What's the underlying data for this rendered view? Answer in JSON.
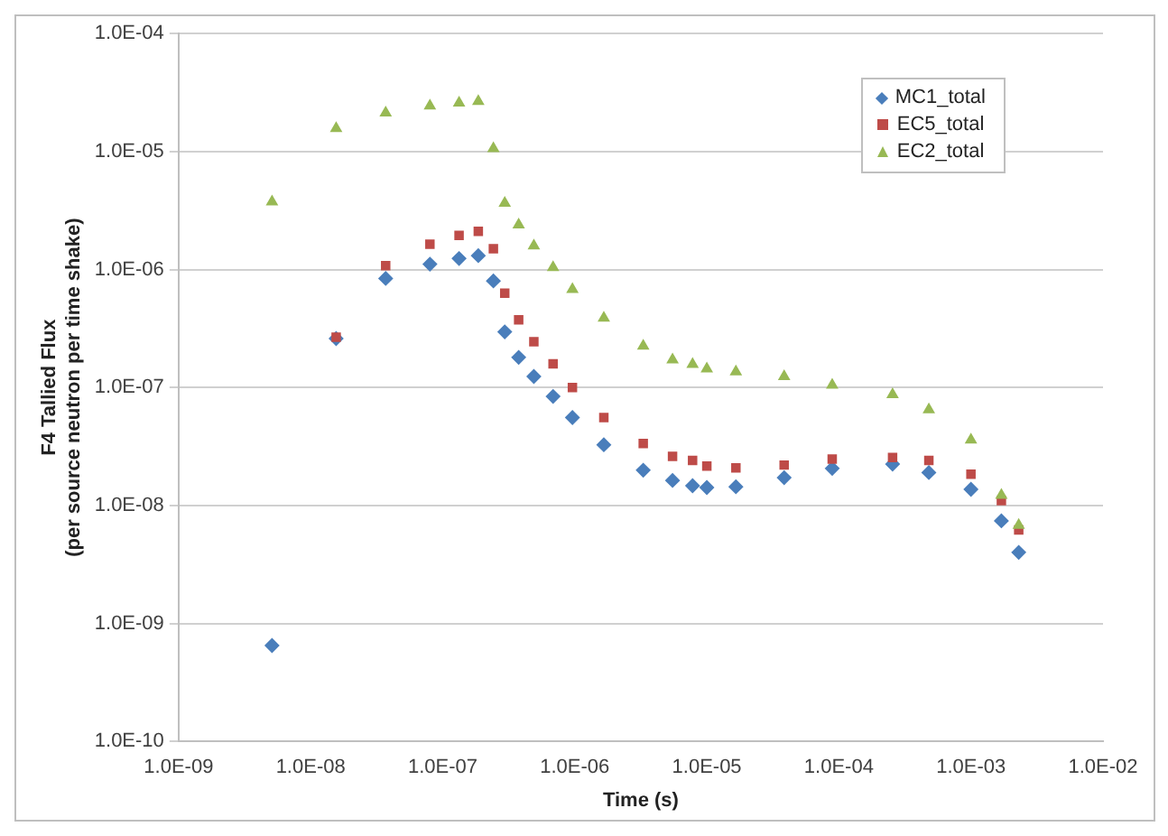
{
  "chart_data": {
    "type": "scatter",
    "xlabel": "Time (s)",
    "ylabel": "F4 Tallied Flux\n(per source neutron per time shake)",
    "log": "xy",
    "grid": "y",
    "legend": "top right",
    "xlim": [
      1e-09,
      0.01
    ],
    "ylim": [
      1e-10,
      0.0001
    ],
    "xticks": [
      {
        "value": 1e-09,
        "label": "1.0E-09"
      },
      {
        "value": 1e-08,
        "label": "1.0E-08"
      },
      {
        "value": 1e-07,
        "label": "1.0E-07"
      },
      {
        "value": 1e-06,
        "label": "1.0E-06"
      },
      {
        "value": 1e-05,
        "label": "1.0E-05"
      },
      {
        "value": 0.0001,
        "label": "1.0E-04"
      },
      {
        "value": 0.001,
        "label": "1.0E-03"
      },
      {
        "value": 0.01,
        "label": "1.0E-02"
      }
    ],
    "yticks": [
      {
        "value": 1e-10,
        "label": "1.0E-10"
      },
      {
        "value": 1e-09,
        "label": "1.0E-09"
      },
      {
        "value": 1e-08,
        "label": "1.0E-08"
      },
      {
        "value": 1e-07,
        "label": "1.0E-07"
      },
      {
        "value": 1e-06,
        "label": "1.0E-06"
      },
      {
        "value": 1e-05,
        "label": "1.0E-05"
      },
      {
        "value": 0.0001,
        "label": "1.0E-04"
      }
    ],
    "x": [
      5.1e-09,
      1.56e-08,
      3.7e-08,
      8e-08,
      1.33e-07,
      1.86e-07,
      2.42e-07,
      2.95e-07,
      3.76e-07,
      4.9e-07,
      6.85e-07,
      9.6e-07,
      1.66e-06,
      3.3e-06,
      5.5e-06,
      7.8e-06,
      1e-05,
      1.66e-05,
      3.85e-05,
      8.9e-05,
      0.000255,
      0.00048,
      0.001,
      0.0017,
      0.0023
    ],
    "series": [
      {
        "name": "MC1_total",
        "color": "#4a7ebb",
        "marker": "diamond",
        "values": [
          6.5e-10,
          2.6e-07,
          8.4e-07,
          1.11e-06,
          1.24e-06,
          1.31e-06,
          8e-07,
          2.96e-07,
          1.8e-07,
          1.24e-07,
          8.4e-08,
          5.56e-08,
          3.27e-08,
          1.99e-08,
          1.63e-08,
          1.47e-08,
          1.42e-08,
          1.44e-08,
          1.72e-08,
          2.06e-08,
          2.24e-08,
          1.9e-08,
          1.37e-08,
          7.4e-09,
          4e-09
        ]
      },
      {
        "name": "EC5_total",
        "color": "#be4b48",
        "marker": "square",
        "values": [
          null,
          2.67e-07,
          1.08e-06,
          1.64e-06,
          1.95e-06,
          2.11e-06,
          1.5e-06,
          6.3e-07,
          3.75e-07,
          2.44e-07,
          1.59e-07,
          1e-07,
          5.56e-08,
          3.35e-08,
          2.61e-08,
          2.41e-08,
          2.16e-08,
          2.08e-08,
          2.2e-08,
          2.47e-08,
          2.55e-08,
          2.41e-08,
          1.84e-08,
          1.1e-08,
          6.2e-09
        ]
      },
      {
        "name": "EC2_total",
        "color": "#98b954",
        "marker": "triangle",
        "values": [
          3.75e-06,
          1.57e-05,
          2.13e-05,
          2.44e-05,
          2.58e-05,
          2.67e-05,
          1.06e-05,
          3.66e-06,
          2.39e-06,
          1.59e-06,
          1.04e-06,
          6.8e-07,
          3.88e-07,
          2.25e-07,
          1.72e-07,
          1.57e-07,
          1.44e-07,
          1.36e-07,
          1.24e-07,
          1.05e-07,
          8.7e-08,
          6.5e-08,
          3.6e-08,
          1.22e-08,
          6.8e-09
        ]
      }
    ]
  }
}
